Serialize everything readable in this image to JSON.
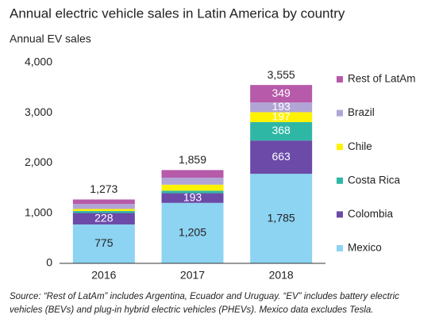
{
  "chart_data": {
    "type": "stacked_bar",
    "title": "Annual electric vehicle sales in Latin America by country",
    "y_label": "Annual EV sales",
    "categories": [
      "2016",
      "2017",
      "2018"
    ],
    "series": [
      {
        "name": "Mexico",
        "color": "#8dd3f2",
        "values": [
          775,
          1205,
          1785
        ],
        "value_labels": [
          "775",
          "1,205",
          "1,785"
        ]
      },
      {
        "name": "Colombia",
        "color": "#6b4aa8",
        "values": [
          228,
          193,
          663
        ],
        "value_labels": [
          "228",
          "193",
          "663"
        ]
      },
      {
        "name": "Costa Rica",
        "color": "#2fb7a6",
        "values": [
          40,
          50,
          368
        ],
        "value_labels": [
          null,
          null,
          "368"
        ]
      },
      {
        "name": "Chile",
        "color": "#fff200",
        "values": [
          40,
          120,
          197
        ],
        "value_labels": [
          null,
          null,
          "197"
        ]
      },
      {
        "name": "Brazil",
        "color": "#b1a5d6",
        "values": [
          100,
          140,
          193
        ],
        "value_labels": [
          null,
          null,
          "193"
        ]
      },
      {
        "name": "Rest of LatAm",
        "color": "#b65aa9",
        "values": [
          90,
          151,
          349
        ],
        "value_labels": [
          null,
          null,
          "349"
        ]
      }
    ],
    "totals": [
      1273,
      1859,
      3555
    ],
    "total_labels": [
      "1,273",
      "1,859",
      "3,555"
    ],
    "ylim": [
      0,
      4000
    ],
    "yticks": [
      0,
      {
        "value": 1000,
        "label": "1,000"
      },
      {
        "value": 2000,
        "label": "2,000"
      },
      {
        "value": 3000,
        "label": "3,000"
      },
      {
        "value": 4000,
        "label": "4,000"
      }
    ],
    "grid": false,
    "legend": "right",
    "source": "Source: “Rest of LatAm”  includes Argentina, Ecuador and Uruguay. “EV” includes battery electric vehicles (BEVs) and plug-in hybrid electric vehicles (PHEVs). Mexico data excludes Tesla."
  }
}
